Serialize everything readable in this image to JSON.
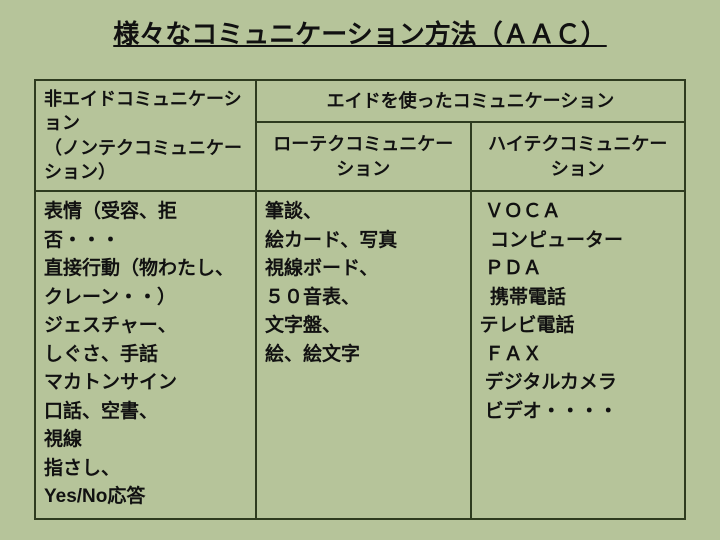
{
  "colors": {
    "background": "#b6c49a",
    "border": "#2e3b1f",
    "text": "#111111"
  },
  "title": "様々なコミュニケーション方法（ＡＡＣ）",
  "table": {
    "header": {
      "nonAid_line1": "非エイドコミュニケーション",
      "nonAid_line2": "（ノンテクコミュニケーション）",
      "aided": "エイドを使ったコミュニケーション",
      "lowtech": "ローテクコミュニケーション",
      "hightech": "ハイテクコミュニケーション"
    },
    "cells": {
      "nonAid": "表情（受容、拒否・・・\n直接行動（物わたし、クレーン・・）\nジェスチャー、\nしぐさ、手話\nマカトンサイン\n口話、空書、\n視線\n指さし、\nYes/No応答",
      "lowtech": "筆談、\n絵カード、写真\n視線ボード、\n５０音表、\n文字盤、\n絵、絵文字",
      "hightech": " ＶＯＣＡ\n  コンピューター\n ＰＤＡ\n  携帯電話\nテレビ電話\n ＦＡＸ\n デジタルカメラ\n ビデオ・・・・"
    }
  }
}
